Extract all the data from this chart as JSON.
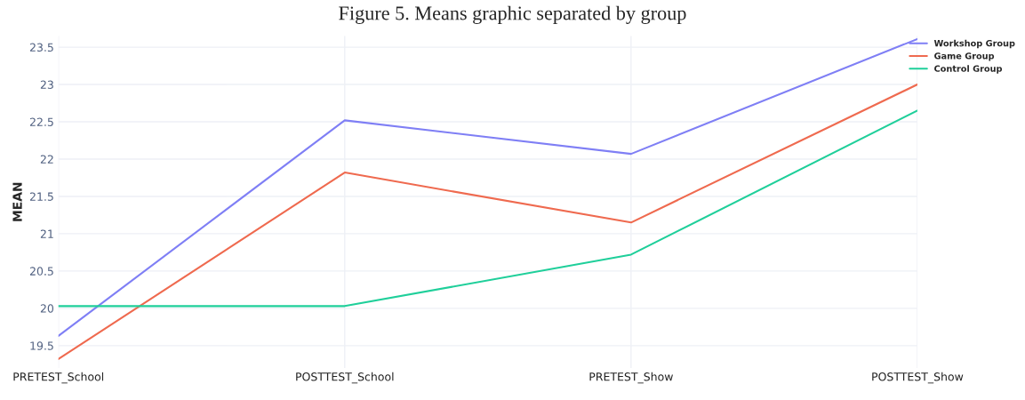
{
  "chart_data": {
    "type": "line",
    "title": "Figure 5. Means graphic separated by group",
    "ylabel": "MEAN",
    "categories": [
      "PRETEST_School",
      "POSTTEST_School",
      "PRETEST_Show",
      "POSTTEST_Show"
    ],
    "series": [
      {
        "name": "Workshop Group",
        "color": "#7f7ff5",
        "values": [
          19.63,
          22.52,
          22.07,
          23.61
        ]
      },
      {
        "name": "Game Group",
        "color": "#ef6a4f",
        "values": [
          19.32,
          21.82,
          21.15,
          23.0
        ]
      },
      {
        "name": "Control Group",
        "color": "#1fcf9a",
        "values": [
          20.03,
          20.03,
          20.72,
          22.65
        ]
      }
    ],
    "ylim": [
      19.2,
      23.65
    ],
    "yticks": [
      19.5,
      20,
      20.5,
      21,
      21.5,
      22,
      22.5,
      23,
      23.5
    ],
    "grid": true,
    "legend": "top right",
    "marker": "none"
  }
}
